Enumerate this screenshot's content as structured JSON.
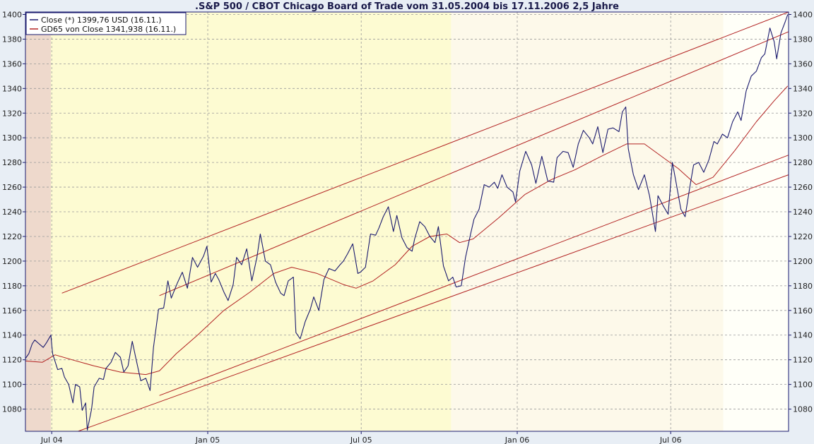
{
  "chart_data": {
    "type": "line",
    "title": ".S&P 500 / CBOT Chicago Board of Trade vom 31.05.2004 bis 17.11.2006 2,5 Jahre",
    "xlabel": "",
    "ylabel": "",
    "x_range": [
      "2004-05-31",
      "2006-11-17"
    ],
    "ylim": [
      1062,
      1402
    ],
    "y_ticks": [
      1080,
      1100,
      1120,
      1140,
      1160,
      1180,
      1200,
      1220,
      1240,
      1260,
      1280,
      1300,
      1320,
      1340,
      1360,
      1380,
      1400
    ],
    "x_ticks": [
      {
        "date": "2004-07-01",
        "label": "Jul 04"
      },
      {
        "date": "2005-01-01",
        "label": "Jan 05"
      },
      {
        "date": "2005-07-01",
        "label": "Jul 05"
      },
      {
        "date": "2006-01-01",
        "label": "Jan 06"
      },
      {
        "date": "2006-07-01",
        "label": "Jul 06"
      }
    ],
    "grid": true,
    "legend_position": "top-left",
    "background_bands": [
      {
        "from": "2004-05-31",
        "to": "2004-06-30",
        "color": "#eed9cc"
      },
      {
        "from": "2004-06-30",
        "to": "2005-10-15",
        "color": "#fdfbd2"
      },
      {
        "from": "2005-10-15",
        "to": "2006-09-01",
        "color": "#fdf9ea"
      },
      {
        "from": "2006-09-01",
        "to": "2006-11-17",
        "color": "#fffff8"
      }
    ],
    "series": [
      {
        "name": "Close (*) 1399,76 USD (16.11.)",
        "color": "#1a1a6e",
        "points": [
          [
            "2004-05-31",
            1121
          ],
          [
            "2004-06-04",
            1125
          ],
          [
            "2004-06-08",
            1133
          ],
          [
            "2004-06-11",
            1136
          ],
          [
            "2004-06-16",
            1133
          ],
          [
            "2004-06-21",
            1130
          ],
          [
            "2004-06-25",
            1134
          ],
          [
            "2004-06-30",
            1140
          ],
          [
            "2004-07-02",
            1125
          ],
          [
            "2004-07-08",
            1112
          ],
          [
            "2004-07-13",
            1113
          ],
          [
            "2004-07-16",
            1106
          ],
          [
            "2004-07-21",
            1100
          ],
          [
            "2004-07-26",
            1085
          ],
          [
            "2004-07-29",
            1100
          ],
          [
            "2004-08-03",
            1098
          ],
          [
            "2004-08-06",
            1079
          ],
          [
            "2004-08-10",
            1085
          ],
          [
            "2004-08-12",
            1063
          ],
          [
            "2004-08-17",
            1080
          ],
          [
            "2004-08-20",
            1098
          ],
          [
            "2004-08-26",
            1105
          ],
          [
            "2004-08-31",
            1104
          ],
          [
            "2004-09-03",
            1113
          ],
          [
            "2004-09-09",
            1118
          ],
          [
            "2004-09-14",
            1126
          ],
          [
            "2004-09-20",
            1122
          ],
          [
            "2004-09-24",
            1110
          ],
          [
            "2004-09-29",
            1115
          ],
          [
            "2004-10-04",
            1135
          ],
          [
            "2004-10-08",
            1122
          ],
          [
            "2004-10-14",
            1103
          ],
          [
            "2004-10-20",
            1105
          ],
          [
            "2004-10-25",
            1095
          ],
          [
            "2004-10-29",
            1130
          ],
          [
            "2004-11-04",
            1161
          ],
          [
            "2004-11-10",
            1162
          ],
          [
            "2004-11-15",
            1184
          ],
          [
            "2004-11-19",
            1170
          ],
          [
            "2004-11-26",
            1182
          ],
          [
            "2004-12-02",
            1191
          ],
          [
            "2004-12-08",
            1178
          ],
          [
            "2004-12-14",
            1203
          ],
          [
            "2004-12-20",
            1195
          ],
          [
            "2004-12-27",
            1204
          ],
          [
            "2004-12-31",
            1212
          ],
          [
            "2005-01-05",
            1183
          ],
          [
            "2005-01-10",
            1190
          ],
          [
            "2005-01-14",
            1185
          ],
          [
            "2005-01-20",
            1175
          ],
          [
            "2005-01-25",
            1168
          ],
          [
            "2005-01-31",
            1181
          ],
          [
            "2005-02-04",
            1203
          ],
          [
            "2005-02-10",
            1197
          ],
          [
            "2005-02-16",
            1210
          ],
          [
            "2005-02-22",
            1184
          ],
          [
            "2005-02-28",
            1203
          ],
          [
            "2005-03-04",
            1222
          ],
          [
            "2005-03-10",
            1200
          ],
          [
            "2005-03-16",
            1197
          ],
          [
            "2005-03-22",
            1183
          ],
          [
            "2005-03-28",
            1174
          ],
          [
            "2005-04-01",
            1172
          ],
          [
            "2005-04-06",
            1184
          ],
          [
            "2005-04-12",
            1187
          ],
          [
            "2005-04-15",
            1142
          ],
          [
            "2005-04-20",
            1137
          ],
          [
            "2005-04-26",
            1151
          ],
          [
            "2005-05-02",
            1161
          ],
          [
            "2005-05-06",
            1171
          ],
          [
            "2005-05-12",
            1160
          ],
          [
            "2005-05-18",
            1185
          ],
          [
            "2005-05-24",
            1194
          ],
          [
            "2005-05-31",
            1192
          ],
          [
            "2005-06-06",
            1197
          ],
          [
            "2005-06-10",
            1200
          ],
          [
            "2005-06-15",
            1206
          ],
          [
            "2005-06-21",
            1214
          ],
          [
            "2005-06-27",
            1190
          ],
          [
            "2005-06-30",
            1191
          ],
          [
            "2005-07-06",
            1195
          ],
          [
            "2005-07-12",
            1222
          ],
          [
            "2005-07-18",
            1221
          ],
          [
            "2005-07-22",
            1227
          ],
          [
            "2005-07-27",
            1236
          ],
          [
            "2005-08-02",
            1244
          ],
          [
            "2005-08-08",
            1224
          ],
          [
            "2005-08-12",
            1237
          ],
          [
            "2005-08-18",
            1219
          ],
          [
            "2005-08-24",
            1211
          ],
          [
            "2005-08-30",
            1208
          ],
          [
            "2005-09-02",
            1218
          ],
          [
            "2005-09-08",
            1232
          ],
          [
            "2005-09-14",
            1228
          ],
          [
            "2005-09-20",
            1220
          ],
          [
            "2005-09-26",
            1215
          ],
          [
            "2005-09-30",
            1228
          ],
          [
            "2005-10-06",
            1196
          ],
          [
            "2005-10-12",
            1184
          ],
          [
            "2005-10-17",
            1187
          ],
          [
            "2005-10-21",
            1179
          ],
          [
            "2005-10-27",
            1180
          ],
          [
            "2005-11-01",
            1203
          ],
          [
            "2005-11-07",
            1222
          ],
          [
            "2005-11-11",
            1234
          ],
          [
            "2005-11-17",
            1242
          ],
          [
            "2005-11-23",
            1262
          ],
          [
            "2005-11-29",
            1260
          ],
          [
            "2005-12-05",
            1264
          ],
          [
            "2005-12-09",
            1259
          ],
          [
            "2005-12-14",
            1270
          ],
          [
            "2005-12-20",
            1260
          ],
          [
            "2005-12-27",
            1256
          ],
          [
            "2005-12-30",
            1248
          ],
          [
            "2006-01-04",
            1273
          ],
          [
            "2006-01-11",
            1289
          ],
          [
            "2006-01-18",
            1278
          ],
          [
            "2006-01-23",
            1263
          ],
          [
            "2006-01-30",
            1285
          ],
          [
            "2006-02-06",
            1265
          ],
          [
            "2006-02-13",
            1264
          ],
          [
            "2006-02-17",
            1284
          ],
          [
            "2006-02-24",
            1289
          ],
          [
            "2006-03-02",
            1288
          ],
          [
            "2006-03-08",
            1276
          ],
          [
            "2006-03-14",
            1295
          ],
          [
            "2006-03-20",
            1306
          ],
          [
            "2006-03-27",
            1300
          ],
          [
            "2006-03-31",
            1295
          ],
          [
            "2006-04-06",
            1309
          ],
          [
            "2006-04-12",
            1288
          ],
          [
            "2006-04-18",
            1307
          ],
          [
            "2006-04-24",
            1308
          ],
          [
            "2006-05-01",
            1305
          ],
          [
            "2006-05-05",
            1321
          ],
          [
            "2006-05-09",
            1325
          ],
          [
            "2006-05-12",
            1291
          ],
          [
            "2006-05-18",
            1270
          ],
          [
            "2006-05-24",
            1258
          ],
          [
            "2006-05-31",
            1270
          ],
          [
            "2006-06-06",
            1253
          ],
          [
            "2006-06-13",
            1224
          ],
          [
            "2006-06-16",
            1253
          ],
          [
            "2006-06-22",
            1245
          ],
          [
            "2006-06-28",
            1238
          ],
          [
            "2006-07-03",
            1280
          ],
          [
            "2006-07-07",
            1265
          ],
          [
            "2006-07-13",
            1242
          ],
          [
            "2006-07-18",
            1236
          ],
          [
            "2006-07-24",
            1262
          ],
          [
            "2006-07-28",
            1278
          ],
          [
            "2006-08-03",
            1280
          ],
          [
            "2006-08-09",
            1272
          ],
          [
            "2006-08-15",
            1282
          ],
          [
            "2006-08-21",
            1297
          ],
          [
            "2006-08-25",
            1295
          ],
          [
            "2006-08-31",
            1303
          ],
          [
            "2006-09-06",
            1300
          ],
          [
            "2006-09-12",
            1313
          ],
          [
            "2006-09-18",
            1321
          ],
          [
            "2006-09-22",
            1314
          ],
          [
            "2006-09-28",
            1338
          ],
          [
            "2006-10-04",
            1350
          ],
          [
            "2006-10-10",
            1354
          ],
          [
            "2006-10-16",
            1365
          ],
          [
            "2006-10-20",
            1368
          ],
          [
            "2006-10-26",
            1389
          ],
          [
            "2006-10-31",
            1378
          ],
          [
            "2006-11-03",
            1364
          ],
          [
            "2006-11-08",
            1385
          ],
          [
            "2006-11-13",
            1394
          ],
          [
            "2006-11-16",
            1400
          ]
        ]
      },
      {
        "name": "GD65 von Close 1341,938 (16.11.)",
        "color": "#b22222",
        "points": [
          [
            "2004-05-31",
            1119
          ],
          [
            "2004-06-20",
            1118
          ],
          [
            "2004-07-05",
            1124
          ],
          [
            "2004-07-25",
            1120
          ],
          [
            "2004-08-20",
            1115
          ],
          [
            "2004-09-20",
            1110
          ],
          [
            "2004-10-20",
            1108
          ],
          [
            "2004-11-05",
            1111
          ],
          [
            "2004-11-25",
            1125
          ],
          [
            "2004-12-20",
            1140
          ],
          [
            "2005-01-20",
            1160
          ],
          [
            "2005-02-20",
            1175
          ],
          [
            "2005-03-20",
            1190
          ],
          [
            "2005-04-10",
            1195
          ],
          [
            "2005-05-10",
            1190
          ],
          [
            "2005-06-10",
            1181
          ],
          [
            "2005-06-25",
            1178
          ],
          [
            "2005-07-15",
            1184
          ],
          [
            "2005-08-10",
            1197
          ],
          [
            "2005-08-30",
            1212
          ],
          [
            "2005-09-20",
            1220
          ],
          [
            "2005-10-10",
            1222
          ],
          [
            "2005-10-25",
            1215
          ],
          [
            "2005-11-10",
            1218
          ],
          [
            "2005-12-10",
            1235
          ],
          [
            "2006-01-10",
            1254
          ],
          [
            "2006-02-10",
            1266
          ],
          [
            "2006-03-10",
            1274
          ],
          [
            "2006-04-10",
            1285
          ],
          [
            "2006-05-10",
            1295
          ],
          [
            "2006-05-31",
            1295
          ],
          [
            "2006-06-20",
            1285
          ],
          [
            "2006-07-10",
            1275
          ],
          [
            "2006-07-31",
            1262
          ],
          [
            "2006-08-20",
            1268
          ],
          [
            "2006-09-15",
            1290
          ],
          [
            "2006-10-10",
            1313
          ],
          [
            "2006-10-31",
            1330
          ],
          [
            "2006-11-16",
            1342
          ]
        ]
      }
    ],
    "trend_lines": [
      {
        "points": [
          [
            "2004-07-13",
            1174
          ],
          [
            "2006-11-17",
            1402
          ]
        ],
        "color": "#b22222"
      },
      {
        "points": [
          [
            "2004-11-05",
            1172
          ],
          [
            "2006-11-17",
            1386
          ]
        ],
        "color": "#b22222"
      },
      {
        "points": [
          [
            "2004-11-05",
            1091
          ],
          [
            "2006-11-17",
            1286
          ]
        ],
        "color": "#b22222"
      },
      {
        "points": [
          [
            "2004-08-01",
            1062
          ],
          [
            "2006-11-17",
            1270
          ]
        ],
        "color": "#b22222"
      }
    ]
  }
}
